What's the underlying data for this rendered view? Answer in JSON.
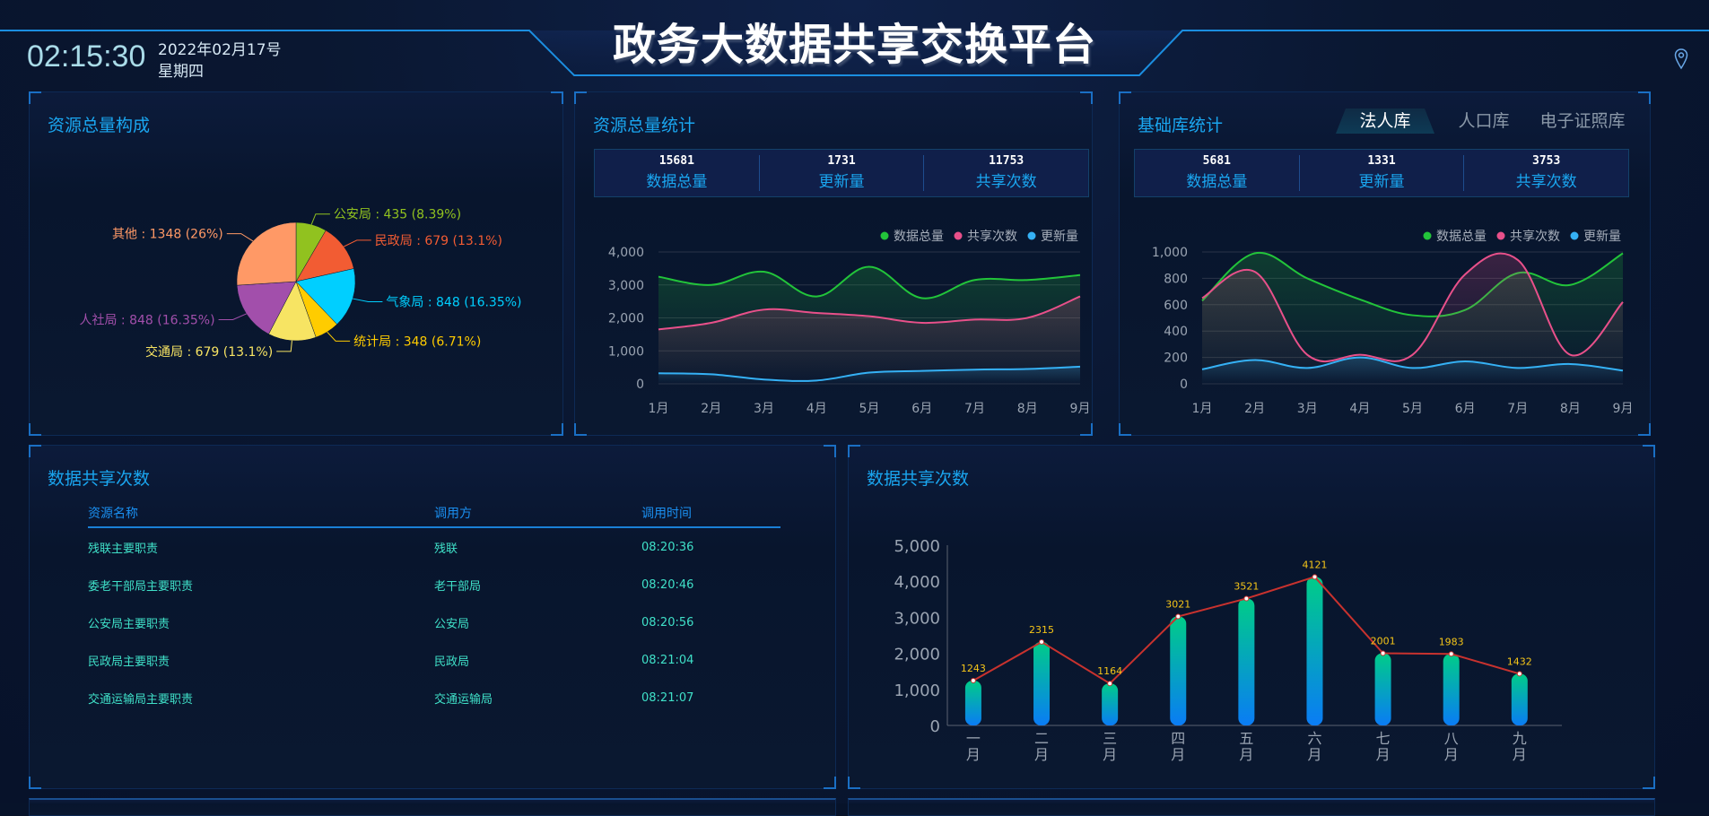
{
  "header": {
    "title": "政务大数据共享交换平台",
    "time": "02:15:30",
    "date": "2022年02月17号",
    "weekday": "星期四",
    "location_icon": "map-pin-icon"
  },
  "pie_panel": {
    "title": "资源总量构成",
    "chart_data": {
      "type": "pie",
      "slices": [
        {
          "name": "公安局",
          "value": 435,
          "percent": "8.39%",
          "color": "#91c21f"
        },
        {
          "name": "民政局",
          "value": 679,
          "percent": "13.1%",
          "color": "#f25c33"
        },
        {
          "name": "气象局",
          "value": 848,
          "percent": "16.35%",
          "color": "#00cfff"
        },
        {
          "name": "统计局",
          "value": 348,
          "percent": "6.71%",
          "color": "#ffcc00"
        },
        {
          "name": "交通局",
          "value": 679,
          "percent": "13.1%",
          "color": "#f7e463"
        },
        {
          "name": "人社局",
          "value": 848,
          "percent": "16.35%",
          "color": "#a24fab"
        },
        {
          "name": "其他",
          "value": 1348,
          "percent": "26%",
          "color": "#ff9966"
        }
      ]
    }
  },
  "resource_panel": {
    "title": "资源总量统计",
    "stats": [
      {
        "value": "15681",
        "label": "数据总量"
      },
      {
        "value": "1731",
        "label": "更新量"
      },
      {
        "value": "11753",
        "label": "共享次数"
      }
    ],
    "chart_data": {
      "type": "area",
      "categories": [
        "1月",
        "2月",
        "3月",
        "4月",
        "5月",
        "6月",
        "7月",
        "8月",
        "9月"
      ],
      "ylim": [
        0,
        4000
      ],
      "yticks": [
        "0",
        "1,000",
        "2,000",
        "3,000",
        "4,000"
      ],
      "legend": "top-right",
      "series": [
        {
          "name": "数据总量",
          "color": "#22c43a",
          "values": [
            3250,
            3000,
            3400,
            2650,
            3550,
            2600,
            3150,
            3150,
            3300
          ]
        },
        {
          "name": "共享次数",
          "color": "#e8508a",
          "values": [
            1650,
            1850,
            2250,
            2150,
            2050,
            1850,
            1950,
            2000,
            2650
          ]
        },
        {
          "name": "更新量",
          "color": "#35b1f5",
          "values": [
            320,
            290,
            130,
            100,
            340,
            390,
            430,
            450,
            520
          ]
        }
      ]
    }
  },
  "base_panel": {
    "title": "基础库统计",
    "tabs": [
      "法人库",
      "人口库",
      "电子证照库"
    ],
    "active_tab": 0,
    "stats": [
      {
        "value": "5681",
        "label": "数据总量"
      },
      {
        "value": "1331",
        "label": "更新量"
      },
      {
        "value": "3753",
        "label": "共享次数"
      }
    ],
    "chart_data": {
      "type": "area",
      "categories": [
        "1月",
        "2月",
        "3月",
        "4月",
        "5月",
        "6月",
        "7月",
        "8月",
        "9月"
      ],
      "ylim": [
        0,
        1000
      ],
      "yticks": [
        "0",
        "200",
        "400",
        "600",
        "800",
        "1,000"
      ],
      "legend": "top-right",
      "series": [
        {
          "name": "数据总量",
          "color": "#22c43a",
          "values": [
            630,
            990,
            800,
            640,
            520,
            560,
            840,
            750,
            990
          ]
        },
        {
          "name": "共享次数",
          "color": "#e8508a",
          "values": [
            650,
            850,
            220,
            220,
            220,
            830,
            940,
            220,
            620
          ]
        },
        {
          "name": "更新量",
          "color": "#35b1f5",
          "values": [
            110,
            180,
            120,
            200,
            120,
            170,
            120,
            150,
            100
          ]
        }
      ]
    }
  },
  "share_table": {
    "title": "数据共享次数",
    "headers": [
      "资源名称",
      "调用方",
      "调用时间"
    ],
    "rows": [
      [
        "残联主要职责",
        "残联",
        "08:20:36"
      ],
      [
        "委老干部局主要职责",
        "老干部局",
        "08:20:46"
      ],
      [
        "公安局主要职责",
        "公安局",
        "08:20:56"
      ],
      [
        "民政局主要职责",
        "民政局",
        "08:21:04"
      ],
      [
        "交通运输局主要职责",
        "交通运输局",
        "08:21:07"
      ]
    ]
  },
  "share_chart": {
    "title": "数据共享次数",
    "chart_data": {
      "type": "bar",
      "categories": [
        "一月",
        "二月",
        "三月",
        "四月",
        "五月",
        "六月",
        "七月",
        "八月",
        "九月"
      ],
      "values": [
        1243,
        2315,
        1164,
        3021,
        3521,
        4121,
        2001,
        1983,
        1432
      ],
      "ylim": [
        0,
        5000
      ],
      "yticks": [
        "0",
        "1,000",
        "2,000",
        "3,000",
        "4,000",
        "5,000"
      ],
      "line_color": "#c8322e",
      "label_color": "#f5c518"
    }
  }
}
